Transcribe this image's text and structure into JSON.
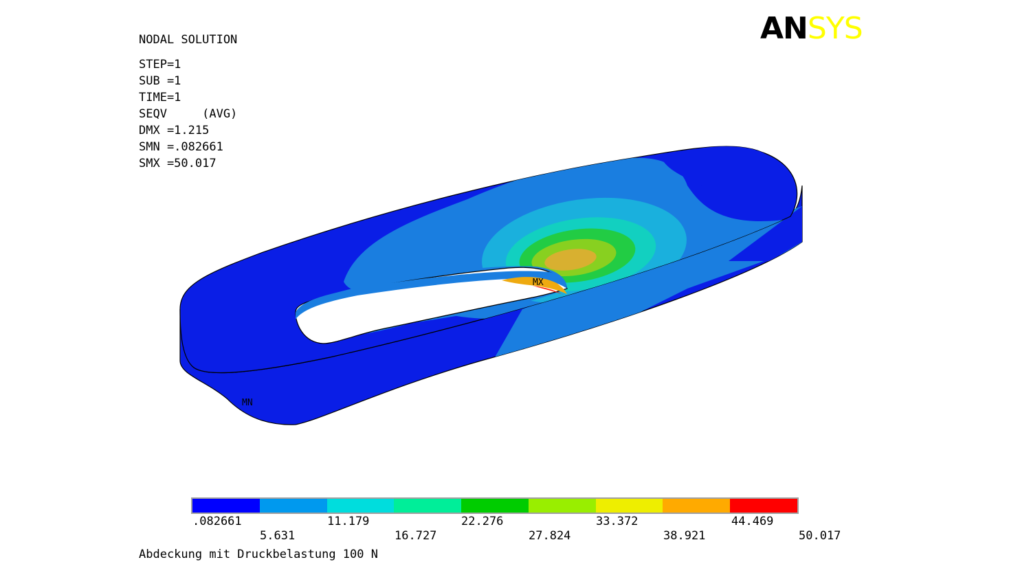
{
  "header": {
    "title": "NODAL SOLUTION",
    "lines": [
      "STEP=1",
      "SUB =1",
      "TIME=1",
      "SEQV     (AVG)",
      "DMX =1.215",
      "SMN =.082661",
      "SMX =50.017"
    ]
  },
  "logo": {
    "part1": "AN",
    "part2": "SYS"
  },
  "model": {
    "max_label": "MX",
    "min_label": "MN"
  },
  "legend": {
    "colors": [
      "#0000ff",
      "#0099ee",
      "#00dddd",
      "#00ee99",
      "#00cc00",
      "#99ee00",
      "#eeee00",
      "#ffaa00",
      "#ff0000"
    ],
    "upper_ticks": [
      ".082661",
      "11.179",
      "22.276",
      "33.372",
      "44.469"
    ],
    "lower_ticks": [
      "5.631",
      "16.727",
      "27.824",
      "38.921",
      "50.017"
    ]
  },
  "caption": "Abdeckung mit Druckbelastung 100 N"
}
